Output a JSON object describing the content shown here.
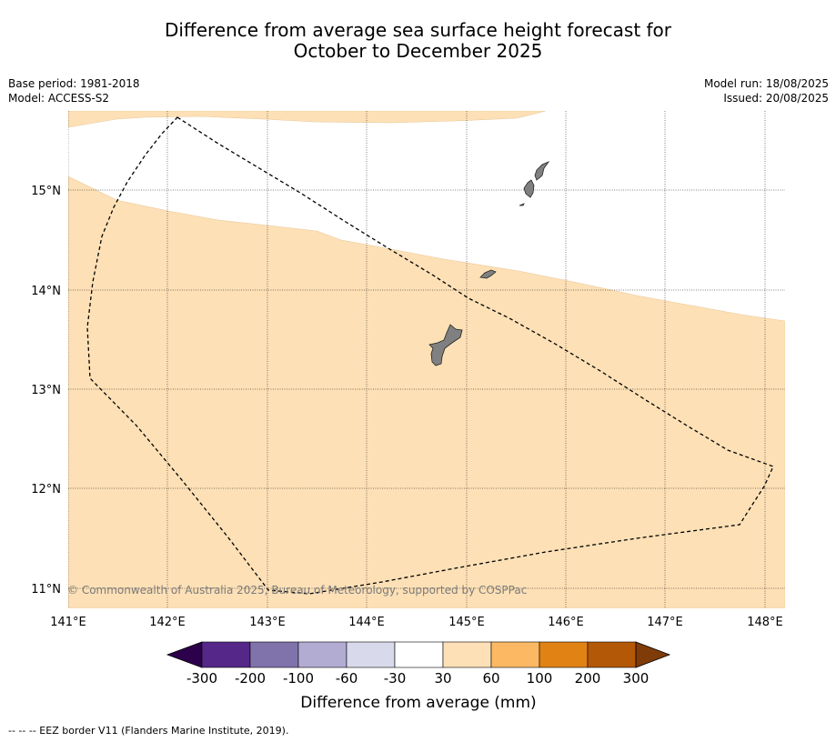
{
  "header": {
    "title_line1": "Difference from average sea surface height forecast for",
    "title_line2": "October to December 2025",
    "base_period": "Base period: 1981-2018",
    "model": "Model: ACCESS-S2",
    "model_run": "Model run: 18/08/2025",
    "issued": "Issued: 20/08/2025"
  },
  "map": {
    "lat_labels": [
      "15°N",
      "14°N",
      "13°N",
      "12°N",
      "11°N"
    ],
    "lon_labels": [
      "141°E",
      "142°E",
      "143°E",
      "144°E",
      "145°E",
      "146°E",
      "147°E",
      "148°E"
    ],
    "credit": "© Commonwealth of Australia 2025, Bureau of Meteorology, supported by COSPPac",
    "colors": {
      "anomaly_30_60": "#fde0b6",
      "land": "#808080",
      "gridline": "#000000"
    }
  },
  "colorbar": {
    "labels": [
      "-300",
      "-200",
      "-100",
      "-60",
      "-30",
      "30",
      "60",
      "100",
      "200",
      "300"
    ],
    "colors": [
      "#2d004b",
      "#542788",
      "#8073ac",
      "#b2abd2",
      "#d8daeb",
      "#ffffff",
      "#fde0b6",
      "#fdb863",
      "#e08214",
      "#b35806",
      "#7f3b08"
    ],
    "title": "Difference from average (mm)"
  },
  "footnote": "--  --  -- EEZ border V11 (Flanders Marine Institute, 2019)."
}
